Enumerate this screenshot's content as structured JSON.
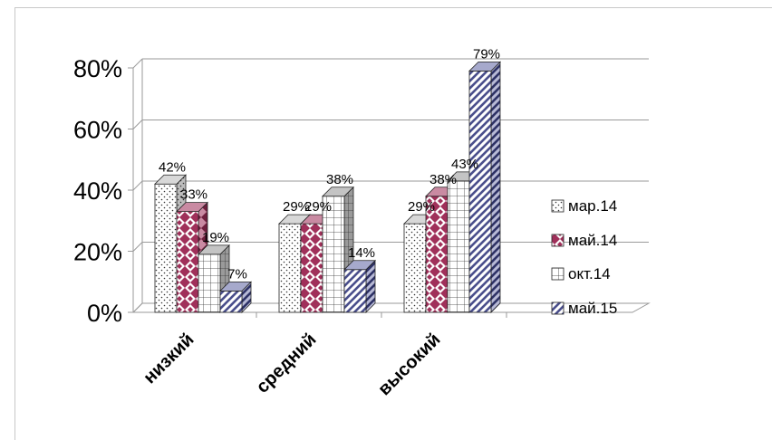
{
  "chart_data": {
    "type": "bar",
    "style": "3d-clustered",
    "categories": [
      "низкий",
      "средний",
      "высокий"
    ],
    "series": [
      {
        "name": "мар.14",
        "values": [
          42,
          29,
          29
        ],
        "pattern": "dots"
      },
      {
        "name": "май.14",
        "values": [
          33,
          29,
          38
        ],
        "pattern": "diamonds",
        "color": "#a0305a"
      },
      {
        "name": "окт.14",
        "values": [
          19,
          38,
          43
        ],
        "pattern": "grid"
      },
      {
        "name": "май.15",
        "values": [
          7,
          14,
          79
        ],
        "pattern": "diagonal",
        "color": "#4a4f8c"
      }
    ],
    "data_labels": [
      [
        "42%",
        "29%",
        "29%"
      ],
      [
        "33%",
        "29%",
        "38%"
      ],
      [
        "19%",
        "38%",
        "43%"
      ],
      [
        "7%",
        "14%",
        "79%"
      ]
    ],
    "y_ticks": [
      "0%",
      "20%",
      "40%",
      "60%",
      "80%"
    ],
    "ylim": [
      0,
      80
    ],
    "grid": true,
    "legend_position": "right"
  }
}
